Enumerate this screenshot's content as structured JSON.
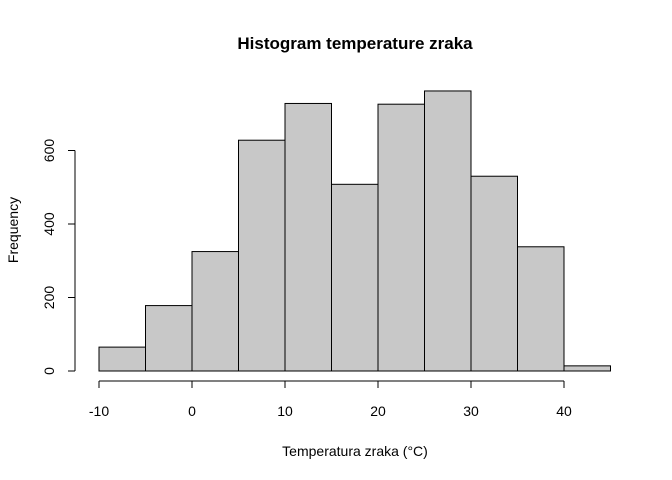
{
  "chart_data": {
    "type": "bar",
    "subtype": "histogram",
    "title": "Histogram temperature zraka",
    "xlabel": "Temperatura zraka (°C)",
    "ylabel": "Frequency",
    "bin_edges": [
      -10,
      -5,
      0,
      5,
      10,
      15,
      20,
      25,
      30,
      35,
      40,
      45
    ],
    "values": [
      65,
      178,
      325,
      628,
      728,
      508,
      726,
      762,
      530,
      338,
      14
    ],
    "xlim": [
      -10,
      45
    ],
    "ylim": [
      0,
      762
    ],
    "x_ticks": [
      -10,
      0,
      10,
      20,
      30,
      40
    ],
    "y_ticks": [
      0,
      200,
      400,
      600
    ],
    "grid": false,
    "colors": {
      "bar_fill": "#c8c8c8",
      "bar_stroke": "#000000"
    }
  }
}
